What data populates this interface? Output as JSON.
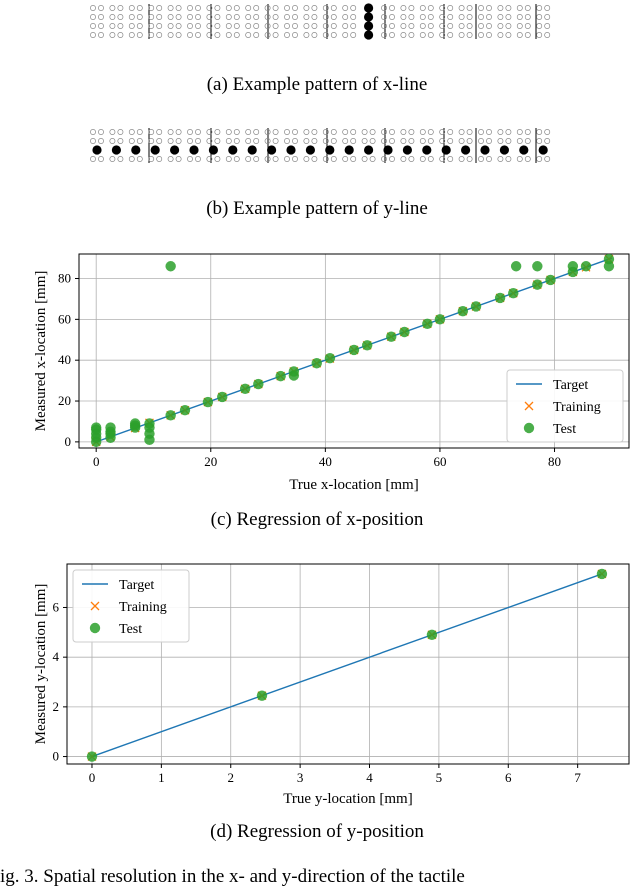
{
  "figure": {
    "captions": {
      "a": "(a) Example pattern of x-line",
      "b": "(b) Example pattern of y-line",
      "c": "(c) Regression of x-position",
      "d": "(d) Regression of y-position"
    },
    "footer_text": "ig. 3.    Spatial resolution in the x- and y-direction of the tactile"
  },
  "chart_data": [
    {
      "type": "scatter",
      "xlabel": "True x-location [mm]",
      "ylabel": "Measured x-location [mm]",
      "xlim": [
        -3,
        93
      ],
      "ylim": [
        -3,
        92
      ],
      "xticks": [
        0,
        20,
        40,
        60,
        80
      ],
      "yticks": [
        0,
        20,
        40,
        60,
        80
      ],
      "grid": true,
      "legend_position": "lower-right",
      "series": [
        {
          "name": "Target",
          "kind": "line",
          "color": "#1f77b4",
          "x": [
            0,
            90
          ],
          "y": [
            0,
            90
          ]
        },
        {
          "name": "Training",
          "kind": "marker-x",
          "color": "#ff7f0e",
          "x": [
            0,
            2.5,
            6.8,
            9.3,
            13.0,
            15.5,
            19.5,
            22.0,
            26.0,
            28.3,
            32.2,
            34.5,
            38.5,
            40.8,
            45.0,
            47.3,
            51.5,
            53.8,
            57.8,
            60.0,
            64.0,
            66.3,
            70.5,
            72.8,
            77.0,
            79.3,
            83.2,
            85.5,
            89.5
          ],
          "y": [
            0,
            2.5,
            6.8,
            9.3,
            13.0,
            15.5,
            19.5,
            22.0,
            26.0,
            28.3,
            32.2,
            34.5,
            38.5,
            40.8,
            45.0,
            47.3,
            51.5,
            53.8,
            57.8,
            60.0,
            64.0,
            66.3,
            70.5,
            72.8,
            77.0,
            79.3,
            83.2,
            85.5,
            89.5
          ]
        },
        {
          "name": "Test",
          "kind": "marker-circle",
          "color": "#2ca02c",
          "x": [
            0,
            0,
            0,
            0,
            0,
            2.5,
            2.5,
            2.5,
            2.5,
            6.8,
            6.8,
            6.8,
            9.3,
            9.3,
            9.3,
            9.3,
            13.0,
            13.0,
            15.5,
            19.5,
            22.0,
            26.0,
            28.3,
            32.2,
            34.5,
            34.5,
            38.5,
            40.8,
            45.0,
            47.3,
            51.5,
            53.8,
            57.8,
            60.0,
            64.0,
            66.3,
            70.5,
            72.8,
            73.3,
            77.0,
            77.0,
            79.3,
            83.2,
            83.2,
            85.5,
            89.5,
            89.5
          ],
          "y": [
            0,
            2,
            4,
            6,
            7,
            2,
            4,
            5,
            7,
            7,
            8,
            9,
            1,
            4,
            7,
            9,
            13,
            86,
            15.5,
            19.5,
            22,
            26,
            28.3,
            32.2,
            32.5,
            34.5,
            38.5,
            41,
            45,
            47.3,
            51.5,
            53.8,
            57.8,
            60,
            64,
            66.3,
            70.5,
            72.8,
            86,
            77,
            86,
            79.3,
            83.2,
            86,
            86,
            86,
            89.5
          ]
        }
      ]
    },
    {
      "type": "scatter",
      "xlabel": "True y-location [mm]",
      "ylabel": "Measured y-location [mm]",
      "xlim": [
        -0.36,
        7.74
      ],
      "ylim": [
        -0.3,
        7.75
      ],
      "xticks": [
        0,
        1,
        2,
        3,
        4,
        5,
        6,
        7
      ],
      "yticks": [
        0,
        2,
        4,
        6
      ],
      "grid": true,
      "legend_position": "upper-left",
      "series": [
        {
          "name": "Target",
          "kind": "line",
          "color": "#1f77b4",
          "x": [
            0,
            7.35
          ],
          "y": [
            0,
            7.35
          ]
        },
        {
          "name": "Training",
          "kind": "marker-x",
          "color": "#ff7f0e",
          "x": [
            0,
            2.45,
            4.9,
            7.35
          ],
          "y": [
            0,
            2.45,
            4.9,
            7.35
          ]
        },
        {
          "name": "Test",
          "kind": "marker-circle",
          "color": "#2ca02c",
          "x": [
            0,
            2.45,
            4.9,
            7.35
          ],
          "y": [
            0,
            2.45,
            4.9,
            7.35
          ]
        }
      ]
    }
  ]
}
